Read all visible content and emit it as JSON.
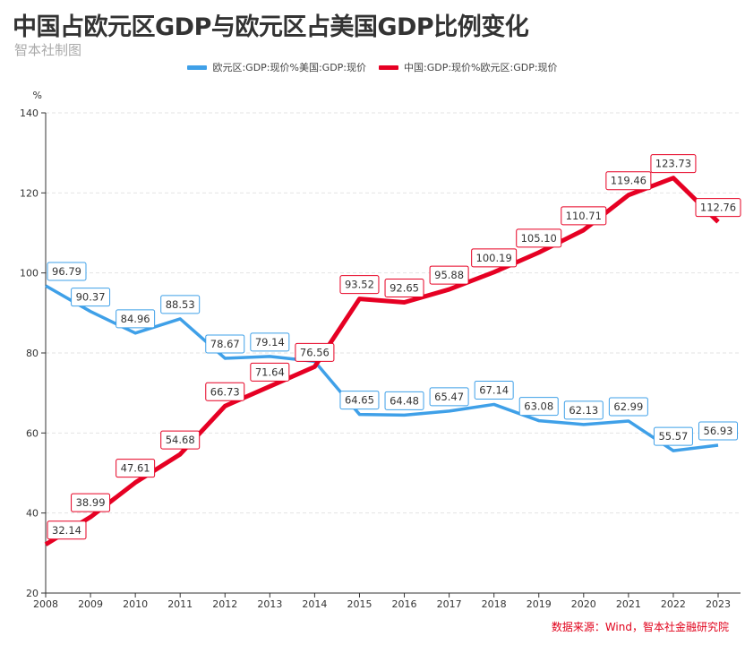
{
  "title": "中国占欧元区GDP与欧元区占美国GDP比例变化",
  "subtitle": "智本社制图",
  "source": "数据来源：Wind，智本社金融研究院",
  "chart_data": {
    "type": "line",
    "title": "中国占欧元区GDP与欧元区占美国GDP比例变化",
    "ylabel": "%",
    "xlabel": "",
    "ylim": [
      20,
      140
    ],
    "yticks": [
      20,
      40,
      60,
      80,
      100,
      120,
      140
    ],
    "grid": true,
    "legend_position": "top",
    "categories": [
      "2008",
      "2009",
      "2010",
      "2011",
      "2012",
      "2013",
      "2014",
      "2015",
      "2016",
      "2017",
      "2018",
      "2019",
      "2020",
      "2021",
      "2022",
      "2023"
    ],
    "series": [
      {
        "name": "欧元区:GDP:现价%美国:GDP:现价",
        "color": "#3fa0e8",
        "values": [
          96.79,
          90.37,
          84.96,
          88.53,
          78.67,
          79.14,
          77.9,
          64.65,
          64.48,
          65.47,
          67.14,
          63.08,
          62.13,
          62.99,
          55.57,
          56.93
        ],
        "labels": [
          "96.79",
          "90.37",
          "84.96",
          "88.53",
          "78.67",
          "79.14",
          "",
          "64.65",
          "64.48",
          "65.47",
          "67.14",
          "63.08",
          "62.13",
          "62.99",
          "55.57",
          "56.93"
        ]
      },
      {
        "name": "中国:GDP:现价%欧元区:GDP:现价",
        "color": "#e60023",
        "values": [
          32.14,
          38.99,
          47.61,
          54.68,
          66.73,
          71.64,
          76.56,
          93.52,
          92.65,
          95.88,
          100.19,
          105.1,
          110.71,
          119.46,
          123.73,
          112.76
        ],
        "labels": [
          "32.14",
          "38.99",
          "47.61",
          "54.68",
          "66.73",
          "71.64",
          "76.56",
          "93.52",
          "92.65",
          "95.88",
          "100.19",
          "105.10",
          "110.71",
          "119.46",
          "123.73",
          "112.76"
        ]
      }
    ]
  }
}
